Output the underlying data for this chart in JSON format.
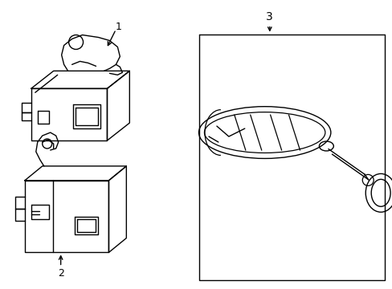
{
  "bg_color": "#ffffff",
  "line_color": "#000000",
  "lw": 1.0,
  "fig_width": 4.89,
  "fig_height": 3.6,
  "dpi": 100,
  "label1": "1",
  "label2": "2",
  "label3": "3"
}
